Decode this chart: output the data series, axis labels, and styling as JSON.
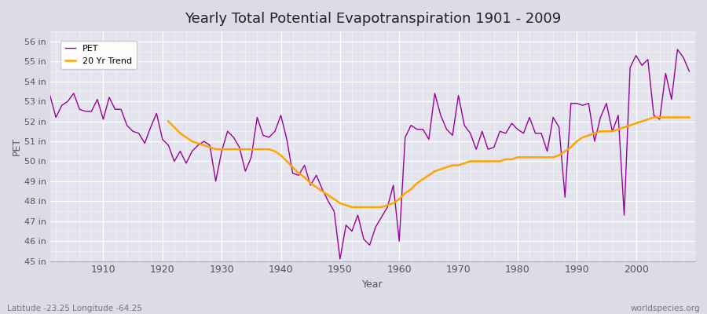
{
  "title": "Yearly Total Potential Evapotranspiration 1901 - 2009",
  "xlabel": "Year",
  "ylabel": "PET",
  "footnote_left": "Latitude -23.25 Longitude -64.25",
  "footnote_right": "worldspecies.org",
  "pet_color": "#990099",
  "trend_color": "#FFA500",
  "fig_bg": "#DCDCE8",
  "plot_bg": "#E4E4EE",
  "ylim_min": 45,
  "ylim_max": 56.5,
  "yticks": [
    45,
    46,
    47,
    48,
    49,
    50,
    51,
    52,
    53,
    54,
    55,
    56
  ],
  "xlim_min": 1901,
  "xlim_max": 2010,
  "years": [
    1901,
    1902,
    1903,
    1904,
    1905,
    1906,
    1907,
    1908,
    1909,
    1910,
    1911,
    1912,
    1913,
    1914,
    1915,
    1916,
    1917,
    1918,
    1919,
    1920,
    1921,
    1922,
    1923,
    1924,
    1925,
    1926,
    1927,
    1928,
    1929,
    1930,
    1931,
    1932,
    1933,
    1934,
    1935,
    1936,
    1937,
    1938,
    1939,
    1940,
    1941,
    1942,
    1943,
    1944,
    1945,
    1946,
    1947,
    1948,
    1949,
    1950,
    1951,
    1952,
    1953,
    1954,
    1955,
    1956,
    1957,
    1958,
    1959,
    1960,
    1961,
    1962,
    1963,
    1964,
    1965,
    1966,
    1967,
    1968,
    1969,
    1970,
    1971,
    1972,
    1973,
    1974,
    1975,
    1976,
    1977,
    1978,
    1979,
    1980,
    1981,
    1982,
    1983,
    1984,
    1985,
    1986,
    1987,
    1988,
    1989,
    1990,
    1991,
    1992,
    1993,
    1994,
    1995,
    1996,
    1997,
    1998,
    1999,
    2000,
    2001,
    2002,
    2003,
    2004,
    2005,
    2006,
    2007,
    2008,
    2009
  ],
  "pet_values": [
    53.3,
    52.2,
    52.8,
    53.0,
    53.4,
    52.6,
    52.5,
    52.5,
    53.1,
    52.1,
    53.2,
    52.6,
    52.6,
    51.8,
    51.5,
    51.4,
    50.9,
    51.7,
    52.4,
    51.1,
    50.8,
    50.0,
    50.5,
    49.9,
    50.5,
    50.8,
    51.0,
    50.8,
    49.0,
    50.5,
    51.5,
    51.2,
    50.7,
    49.5,
    50.2,
    52.2,
    51.3,
    51.2,
    51.5,
    52.3,
    51.1,
    49.4,
    49.3,
    49.8,
    48.8,
    49.3,
    48.6,
    48.0,
    47.5,
    45.1,
    46.8,
    46.5,
    47.3,
    46.1,
    45.8,
    46.7,
    47.2,
    47.7,
    48.8,
    46.0,
    51.2,
    51.8,
    51.6,
    51.6,
    51.1,
    53.4,
    52.3,
    51.6,
    51.3,
    53.3,
    51.8,
    51.4,
    50.6,
    51.5,
    50.6,
    50.7,
    51.5,
    51.4,
    51.9,
    51.6,
    51.4,
    52.2,
    51.4,
    51.4,
    50.5,
    52.2,
    51.7,
    48.2,
    52.9,
    52.9,
    52.8,
    52.9,
    51.0,
    52.2,
    52.9,
    51.5,
    52.3,
    47.3,
    54.7,
    55.3,
    54.8,
    55.1,
    52.3,
    52.1,
    54.4,
    53.1,
    55.6,
    55.2,
    54.5
  ],
  "trend_years": [
    1921,
    1922,
    1923,
    1924,
    1925,
    1926,
    1927,
    1928,
    1929,
    1930,
    1931,
    1932,
    1933,
    1934,
    1935,
    1936,
    1937,
    1938,
    1939,
    1940,
    1941,
    1942,
    1943,
    1944,
    1945,
    1946,
    1947,
    1948,
    1949,
    1950,
    1951,
    1952,
    1953,
    1954,
    1955,
    1956,
    1957,
    1958,
    1959,
    1960,
    1961,
    1962,
    1963,
    1964,
    1965,
    1966,
    1967,
    1968,
    1969,
    1970,
    1971,
    1972,
    1973,
    1974,
    1975,
    1976,
    1977,
    1978,
    1979,
    1980,
    1981,
    1982,
    1983,
    1984,
    1985,
    1986,
    1987,
    1988,
    1989,
    1990,
    1991,
    1992,
    1993,
    1994,
    1995,
    1996,
    1997,
    1998,
    1999,
    2000,
    2001,
    2002,
    2003,
    2004,
    2005,
    2006,
    2007,
    2008,
    2009
  ],
  "trend_values": [
    52.0,
    51.7,
    51.4,
    51.2,
    51.0,
    50.9,
    50.8,
    50.7,
    50.6,
    50.6,
    50.6,
    50.6,
    50.6,
    50.6,
    50.6,
    50.6,
    50.6,
    50.6,
    50.5,
    50.3,
    50.0,
    49.7,
    49.4,
    49.2,
    48.9,
    48.7,
    48.5,
    48.3,
    48.1,
    47.9,
    47.8,
    47.7,
    47.7,
    47.7,
    47.7,
    47.7,
    47.7,
    47.8,
    47.9,
    48.1,
    48.4,
    48.6,
    48.9,
    49.1,
    49.3,
    49.5,
    49.6,
    49.7,
    49.8,
    49.8,
    49.9,
    50.0,
    50.0,
    50.0,
    50.0,
    50.0,
    50.0,
    50.1,
    50.1,
    50.2,
    50.2,
    50.2,
    50.2,
    50.2,
    50.2,
    50.2,
    50.3,
    50.5,
    50.7,
    51.0,
    51.2,
    51.3,
    51.4,
    51.5,
    51.5,
    51.5,
    51.6,
    51.7,
    51.8,
    51.9,
    52.0,
    52.1,
    52.2,
    52.2,
    52.2,
    52.2,
    52.2,
    52.2,
    52.2
  ]
}
